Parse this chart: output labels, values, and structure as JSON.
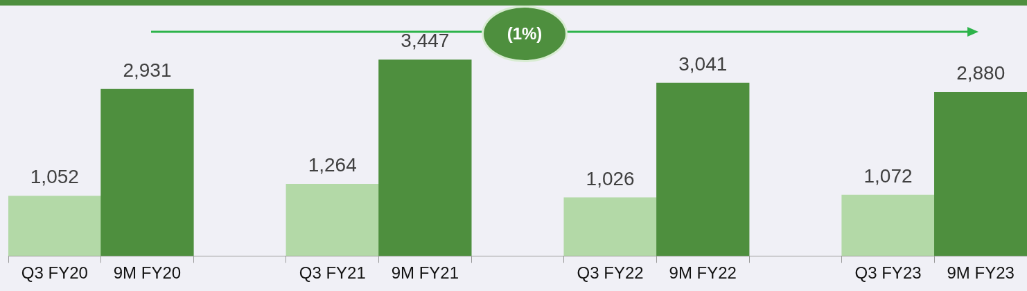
{
  "chart_data": {
    "type": "bar",
    "categories": [
      "Q3 FY20",
      "9M FY20",
      null,
      "Q3 FY21",
      "9M FY21",
      null,
      "Q3 FY22",
      "9M FY22",
      null,
      "Q3 FY23",
      "9M FY23"
    ],
    "values": [
      1052,
      2931,
      null,
      1264,
      3447,
      null,
      1026,
      3041,
      null,
      1072,
      2880
    ],
    "colors": [
      "#b3d9a7",
      "#4e8f3e",
      null,
      "#b3d9a7",
      "#4e8f3e",
      null,
      "#b3d9a7",
      "#4e8f3e",
      null,
      "#b3d9a7",
      "#4e8f3e"
    ],
    "value_labels": [
      "1,052",
      "2,931",
      null,
      "1,264",
      "3,447",
      null,
      "1,026",
      "3,041",
      null,
      "1,072",
      "2,880"
    ],
    "tick_labels": "x",
    "grid": false,
    "legend": false,
    "annotations": [
      "(1%)"
    ]
  }
}
